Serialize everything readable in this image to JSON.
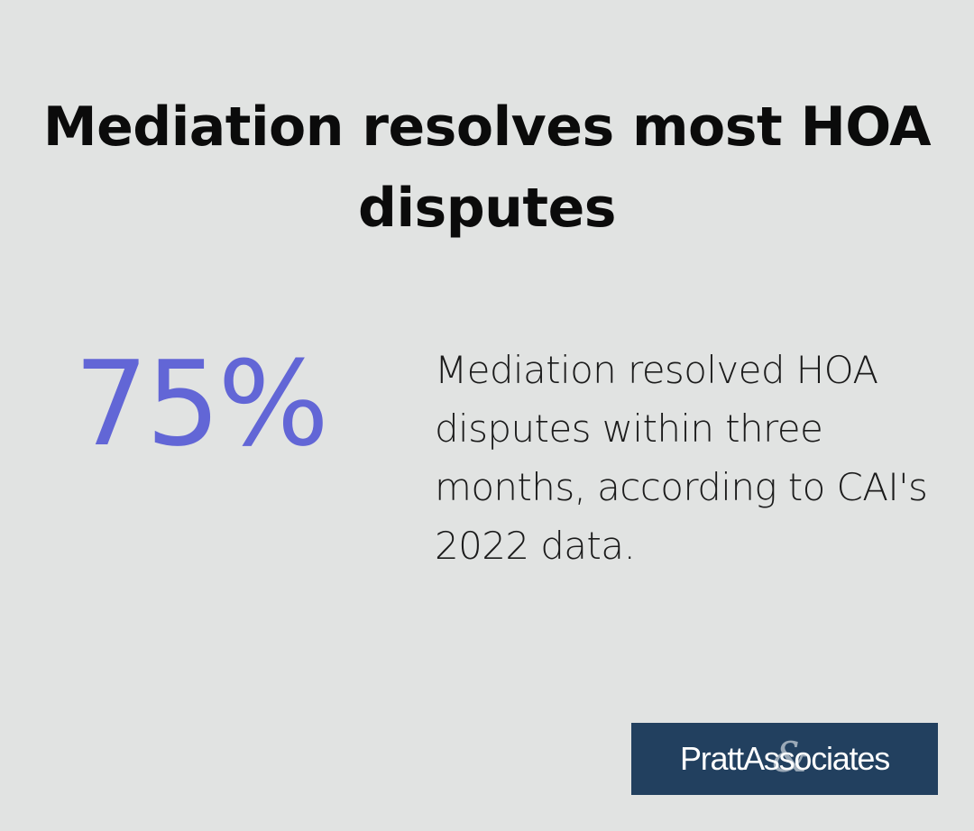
{
  "headline": "Mediation resolves most HOA disputes",
  "stat": {
    "value": "75%",
    "description": "Mediation resolved HOA disputes within three months, according to CAI's 2022 data."
  },
  "logo": {
    "text": "PrattAssociates",
    "amp": "&"
  },
  "colors": {
    "background": "#e1e3e2",
    "accent": "#6266d6",
    "logo_background": "#22405f"
  }
}
